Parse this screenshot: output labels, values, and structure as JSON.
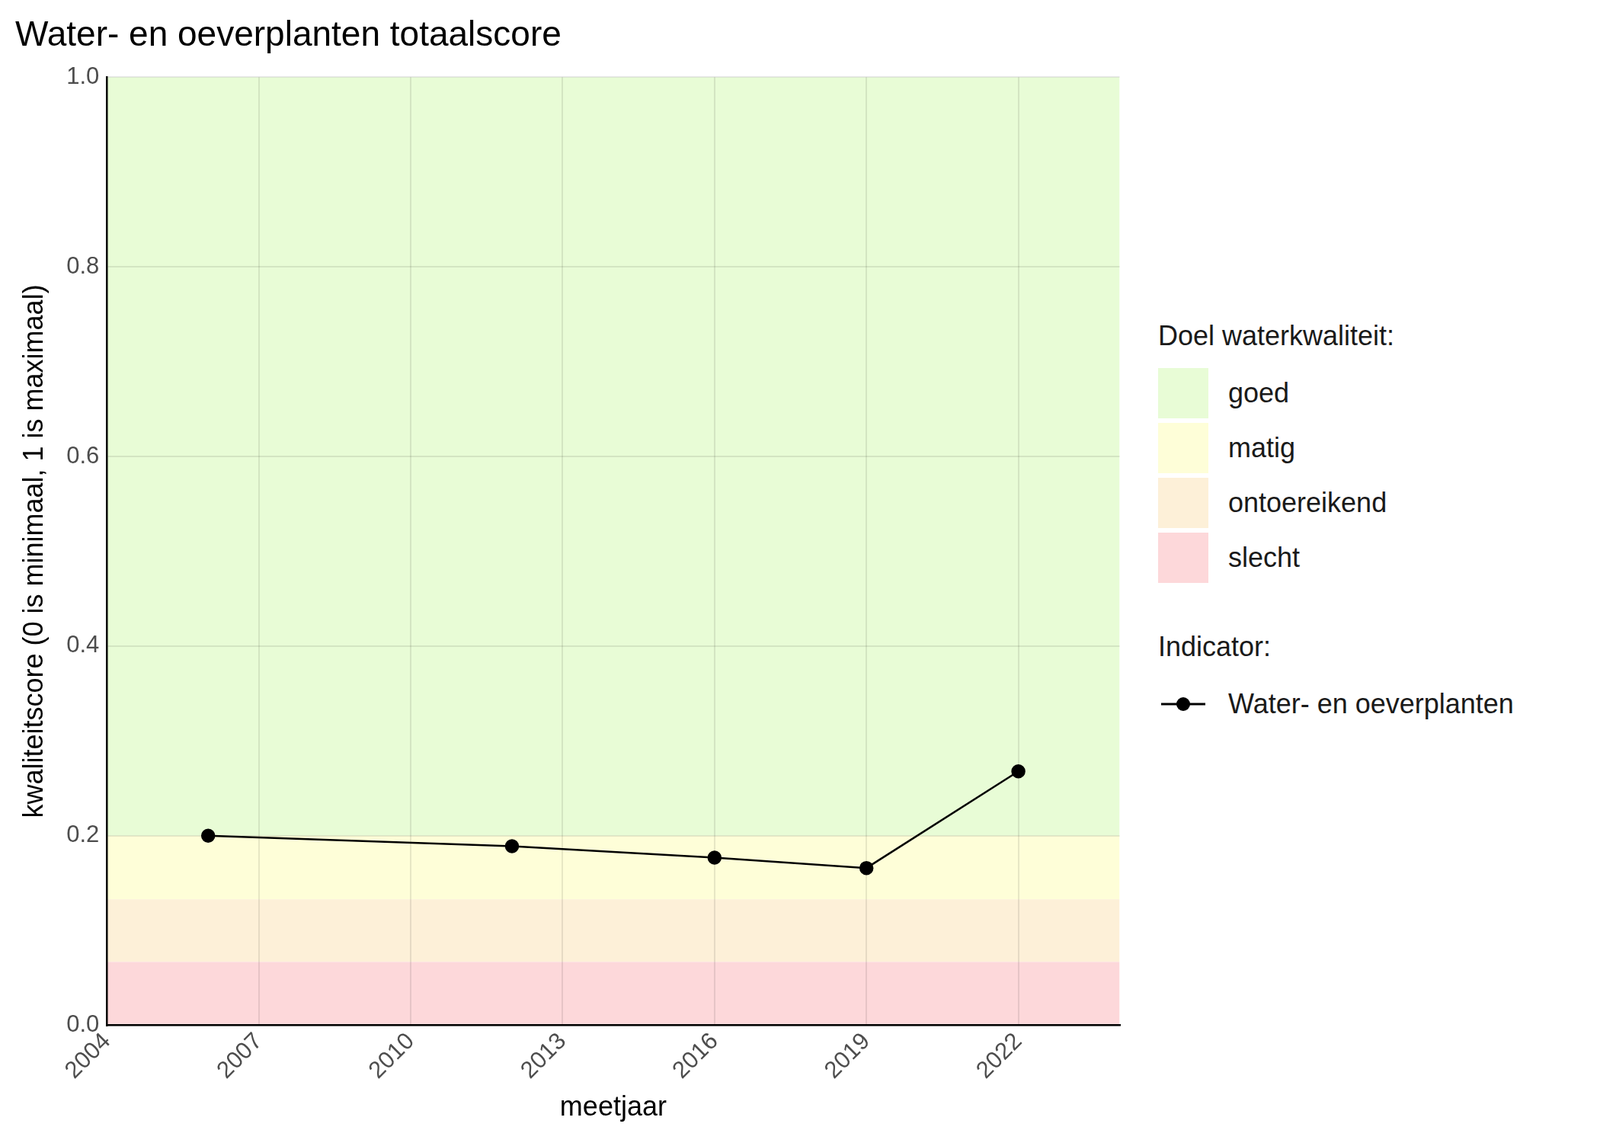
{
  "chart_data": {
    "type": "line",
    "title": "Water- en oeverplanten totaalscore",
    "x_label": "meetjaar",
    "y_label": "kwaliteitscore (0 is minimaal, 1 is maximaal)",
    "x": [
      2006,
      2012,
      2016,
      2019,
      2022
    ],
    "series": [
      {
        "name": "Water- en oeverplanten",
        "color": "#000000",
        "marker": "circle",
        "line_style": "solid",
        "values": [
          0.2,
          0.189,
          0.177,
          0.166,
          0.268
        ]
      }
    ],
    "xlim": [
      2004,
      2024
    ],
    "xticks": [
      2004,
      2007,
      2010,
      2013,
      2016,
      2019,
      2022
    ],
    "ylim": [
      0,
      1
    ],
    "yticks": [
      {
        "value": 0,
        "label": "0.0"
      },
      0.2,
      0.4,
      0.6,
      0.8,
      {
        "value": 1,
        "label": "1.0"
      }
    ],
    "grid": true,
    "legend": "right",
    "bands_title": "Doel waterkwaliteit:",
    "bands": [
      {
        "name": "goed",
        "from": 0.2,
        "to": 1,
        "color": "#e8fcd6"
      },
      {
        "name": "matig",
        "from": 0.133,
        "to": 0.2,
        "color": "#fefed8"
      },
      {
        "name": "ontoereikend",
        "from": 0.067,
        "to": 0.133,
        "color": "#fdf0d8"
      },
      {
        "name": "slecht",
        "from": 0,
        "to": 0.067,
        "color": "#fdd8da"
      }
    ],
    "series_legend_title": "Indicator:"
  }
}
